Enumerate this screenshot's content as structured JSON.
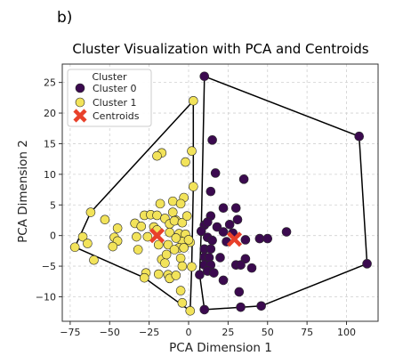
{
  "chart_data": {
    "type": "scatter",
    "panel_label": "b)",
    "title": "Cluster Visualization with PCA and Centroids",
    "xlabel": "PCA Dimension 1",
    "ylabel": "PCA Dimension 2",
    "xlim": [
      -80,
      120
    ],
    "ylim": [
      -14,
      28
    ],
    "xticks": [
      -75,
      -50,
      -25,
      0,
      25,
      50,
      75,
      100
    ],
    "yticks": [
      -10,
      -5,
      0,
      5,
      10,
      15,
      20,
      25
    ],
    "grid": true,
    "legend": {
      "title": "Cluster",
      "placement": "top-left",
      "entries": [
        "Cluster 0",
        "Cluster 1",
        "Centroids"
      ]
    },
    "colors": {
      "cluster0": "#3b0a4f",
      "cluster1": "#f2e35a",
      "centroid": "#e8402a",
      "hull": "#000000",
      "grid": "#d0d0d0"
    },
    "series": [
      {
        "name": "Cluster 0",
        "points": [
          [
            10,
            26
          ],
          [
            108,
            16.2
          ],
          [
            113,
            -4.6
          ],
          [
            15,
            15.6
          ],
          [
            17,
            10.2
          ],
          [
            35,
            9.2
          ],
          [
            14,
            7.2
          ],
          [
            22,
            4.5
          ],
          [
            30,
            4.5
          ],
          [
            31,
            2.6
          ],
          [
            26,
            1.8
          ],
          [
            14,
            3.2
          ],
          [
            10,
            1.7
          ],
          [
            8,
            0.7
          ],
          [
            12,
            -0.3
          ],
          [
            12,
            2.2
          ],
          [
            18,
            1.4
          ],
          [
            22,
            0.6
          ],
          [
            24,
            -1
          ],
          [
            28,
            0.4
          ],
          [
            36,
            -0.7
          ],
          [
            45,
            -0.5
          ],
          [
            50,
            -0.5
          ],
          [
            62,
            0.6
          ],
          [
            15,
            -0.8
          ],
          [
            10,
            -2.2
          ],
          [
            14,
            -2.2
          ],
          [
            10,
            -3.5
          ],
          [
            13,
            -3.6
          ],
          [
            20,
            -3.6
          ],
          [
            36,
            -3.8
          ],
          [
            10,
            -4.8
          ],
          [
            14,
            -4.8
          ],
          [
            30,
            -4.8
          ],
          [
            33,
            -4.8
          ],
          [
            40,
            -5.3
          ],
          [
            12,
            -5.8
          ],
          [
            7,
            -6.4
          ],
          [
            22,
            -7.3
          ],
          [
            32,
            -9.2
          ],
          [
            46,
            -11.5
          ],
          [
            33,
            -11.7
          ],
          [
            10,
            -12.1
          ],
          [
            16,
            -6.1
          ]
        ]
      },
      {
        "name": "Cluster 1",
        "points": [
          [
            3,
            22
          ],
          [
            -17,
            13.5
          ],
          [
            -20,
            13
          ],
          [
            -2,
            12
          ],
          [
            2,
            13.8
          ],
          [
            3,
            8
          ],
          [
            -3,
            6.2
          ],
          [
            -18,
            5.2
          ],
          [
            -10,
            5.6
          ],
          [
            -5,
            5.2
          ],
          [
            -62,
            3.8
          ],
          [
            -10,
            3.8
          ],
          [
            -8,
            2.5
          ],
          [
            -28,
            3.3
          ],
          [
            -24,
            3.4
          ],
          [
            -20,
            3.3
          ],
          [
            -15,
            2.8
          ],
          [
            -12,
            1.9
          ],
          [
            -9,
            2.4
          ],
          [
            -4,
            2.1
          ],
          [
            -1,
            3.2
          ],
          [
            -53,
            2.6
          ],
          [
            -45,
            1.2
          ],
          [
            -34,
            2
          ],
          [
            -30,
            1.5
          ],
          [
            -22,
            1.4
          ],
          [
            -20,
            0.9
          ],
          [
            -12,
            0.5
          ],
          [
            -6,
            0.3
          ],
          [
            -2,
            0.2
          ],
          [
            -4,
            -1
          ],
          [
            1,
            -1.1
          ],
          [
            -67,
            -0.2
          ],
          [
            -64,
            -1.3
          ],
          [
            -47,
            -0.3
          ],
          [
            -45,
            -0.9
          ],
          [
            -33,
            -0.2
          ],
          [
            -26,
            -0.2
          ],
          [
            -8,
            -0.4
          ],
          [
            0,
            -0.7
          ],
          [
            -13,
            -1.5
          ],
          [
            -19,
            -1.5
          ],
          [
            -6,
            -2
          ],
          [
            -3,
            -2
          ],
          [
            -72,
            -1.9
          ],
          [
            -48,
            -1.8
          ],
          [
            -32,
            -2.3
          ],
          [
            -9,
            -2.3
          ],
          [
            -60,
            -4
          ],
          [
            -17,
            -3.9
          ],
          [
            -5,
            -3.7
          ],
          [
            -15,
            -4.5
          ],
          [
            -4,
            -5
          ],
          [
            2,
            -5.1
          ],
          [
            -27,
            -6.1
          ],
          [
            -19,
            -6.3
          ],
          [
            -13,
            -6.4
          ],
          [
            -28,
            -6.9
          ],
          [
            -12,
            -7
          ],
          [
            -8,
            -6.5
          ],
          [
            -5,
            -9
          ],
          [
            -4,
            -11
          ],
          [
            1,
            -12.3
          ],
          [
            -14,
            -3.1
          ]
        ]
      }
    ],
    "centroids": [
      {
        "cluster": "Cluster 0",
        "x": 29,
        "y": -0.6
      },
      {
        "cluster": "Cluster 1",
        "x": -20,
        "y": 0
      }
    ],
    "hulls": [
      {
        "cluster": "Cluster 0",
        "vertices": [
          [
            10,
            26
          ],
          [
            108,
            16.2
          ],
          [
            113,
            -4.6
          ],
          [
            46,
            -11.5
          ],
          [
            10,
            -12.1
          ],
          [
            7,
            -6.4
          ],
          [
            8,
            0.7
          ]
        ]
      },
      {
        "cluster": "Cluster 1",
        "vertices": [
          [
            3,
            22
          ],
          [
            -62,
            3.8
          ],
          [
            -72,
            -1.9
          ],
          [
            -28,
            -6.9
          ],
          [
            1,
            -12.3
          ],
          [
            2,
            -5.1
          ],
          [
            3,
            8
          ]
        ]
      }
    ]
  }
}
